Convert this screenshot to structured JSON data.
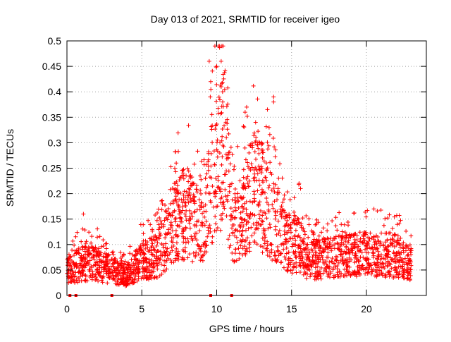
{
  "chart_data": {
    "type": "scatter",
    "title": "Day 013 of 2021, SRMTID for receiver igeo",
    "xlabel": "GPS time / hours",
    "ylabel": "SRMTID / TECUs",
    "xlim": [
      0,
      24
    ],
    "ylim": [
      0,
      0.5
    ],
    "xticks": [
      0,
      5,
      10,
      15,
      20
    ],
    "yticks": [
      0,
      0.05,
      0.1,
      0.15,
      0.2,
      0.25,
      0.3,
      0.35,
      0.4,
      0.45,
      0.5
    ],
    "ytick_labels": [
      "0",
      "0.05",
      "0.1",
      "0.15",
      "0.2",
      "0.25",
      "0.3",
      "0.35",
      "0.4",
      "0.45",
      "0.5"
    ],
    "grid": true,
    "marker": "+",
    "series_color": "#ff0000",
    "gap_markers_x": [
      0.2,
      0.6,
      3.0,
      9.6,
      11.0
    ],
    "profile": [
      [
        0.0,
        0.045
      ],
      [
        0.5,
        0.055
      ],
      [
        1.0,
        0.06
      ],
      [
        2.0,
        0.06
      ],
      [
        3.0,
        0.05
      ],
      [
        3.5,
        0.04
      ],
      [
        4.0,
        0.04
      ],
      [
        4.5,
        0.055
      ],
      [
        5.0,
        0.065
      ],
      [
        5.5,
        0.07
      ],
      [
        6.0,
        0.075
      ],
      [
        6.5,
        0.1
      ],
      [
        7.0,
        0.14
      ],
      [
        7.5,
        0.15
      ],
      [
        8.0,
        0.16
      ],
      [
        8.5,
        0.14
      ],
      [
        9.0,
        0.13
      ],
      [
        9.5,
        0.2
      ],
      [
        10.0,
        0.26
      ],
      [
        10.5,
        0.28
      ],
      [
        11.0,
        0.14
      ],
      [
        11.5,
        0.14
      ],
      [
        12.0,
        0.18
      ],
      [
        12.5,
        0.2
      ],
      [
        13.0,
        0.19
      ],
      [
        13.5,
        0.16
      ],
      [
        14.0,
        0.14
      ],
      [
        14.5,
        0.11
      ],
      [
        15.0,
        0.095
      ],
      [
        15.5,
        0.1
      ],
      [
        16.0,
        0.07
      ],
      [
        17.0,
        0.07
      ],
      [
        18.0,
        0.075
      ],
      [
        19.0,
        0.075
      ],
      [
        20.0,
        0.08
      ],
      [
        21.0,
        0.08
      ],
      [
        22.0,
        0.075
      ],
      [
        23.0,
        0.06
      ]
    ],
    "highlight_points": [
      [
        9.5,
        0.46
      ],
      [
        9.6,
        0.42
      ],
      [
        10.0,
        0.45
      ],
      [
        10.2,
        0.49
      ],
      [
        10.3,
        0.46
      ],
      [
        10.3,
        0.41
      ],
      [
        10.4,
        0.38
      ],
      [
        11.9,
        0.36
      ],
      [
        12.0,
        0.37
      ],
      [
        12.6,
        0.34
      ],
      [
        13.0,
        0.3
      ],
      [
        13.5,
        0.33
      ],
      [
        13.8,
        0.39
      ],
      [
        13.8,
        0.38
      ],
      [
        15.5,
        0.22
      ],
      [
        15.6,
        0.21
      ],
      [
        20.5,
        0.17
      ],
      [
        1.1,
        0.16
      ],
      [
        7.2,
        0.25
      ],
      [
        7.3,
        0.26
      ]
    ]
  }
}
